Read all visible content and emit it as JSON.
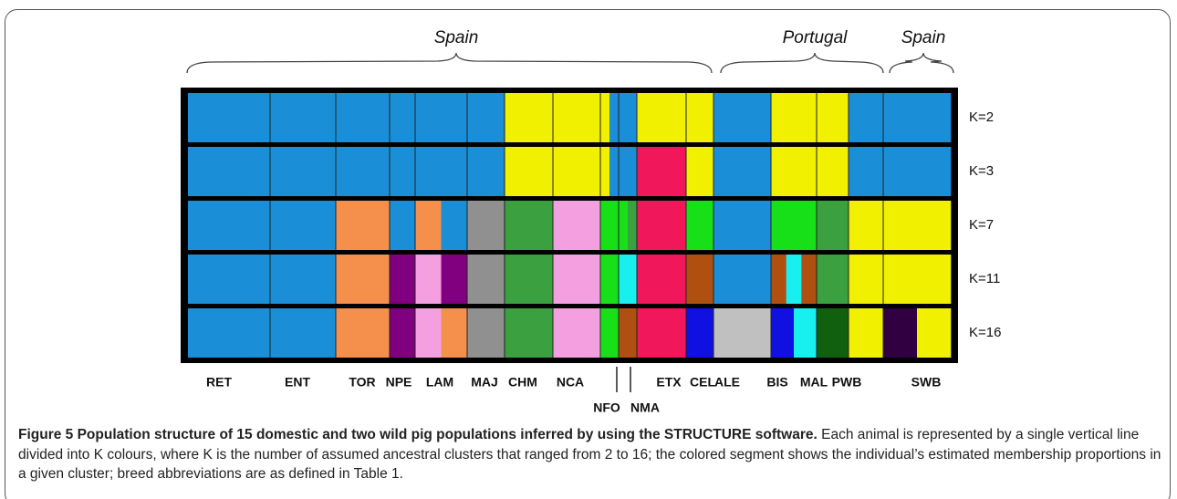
{
  "regions": [
    "Spain",
    "Portugal",
    "Spain"
  ],
  "k_labels": [
    "K=2",
    "K=3",
    "K=7",
    "K=11",
    "K=16"
  ],
  "populations": [
    "RET",
    "ENT",
    "TOR",
    "NPE",
    "LAM",
    "MAJ",
    "CHM",
    "NCA",
    "NFO",
    "NMA",
    "ETX",
    "CEL",
    "ALE",
    "BIS",
    "MAL",
    "PWB",
    "SWB"
  ],
  "caption": {
    "title": "Figure 5 Population structure of 15 domestic and two wild pig populations inferred by using the STRUCTURE software.",
    "text": " Each animal is represented by a single vertical line divided into K colours, where K is the number of assumed ancestral clusters that ranged from 2 to 16; the colored segment shows the individual’s estimated membership proportions in a given cluster; breed abbreviations are as defined in Table 1."
  }
}
